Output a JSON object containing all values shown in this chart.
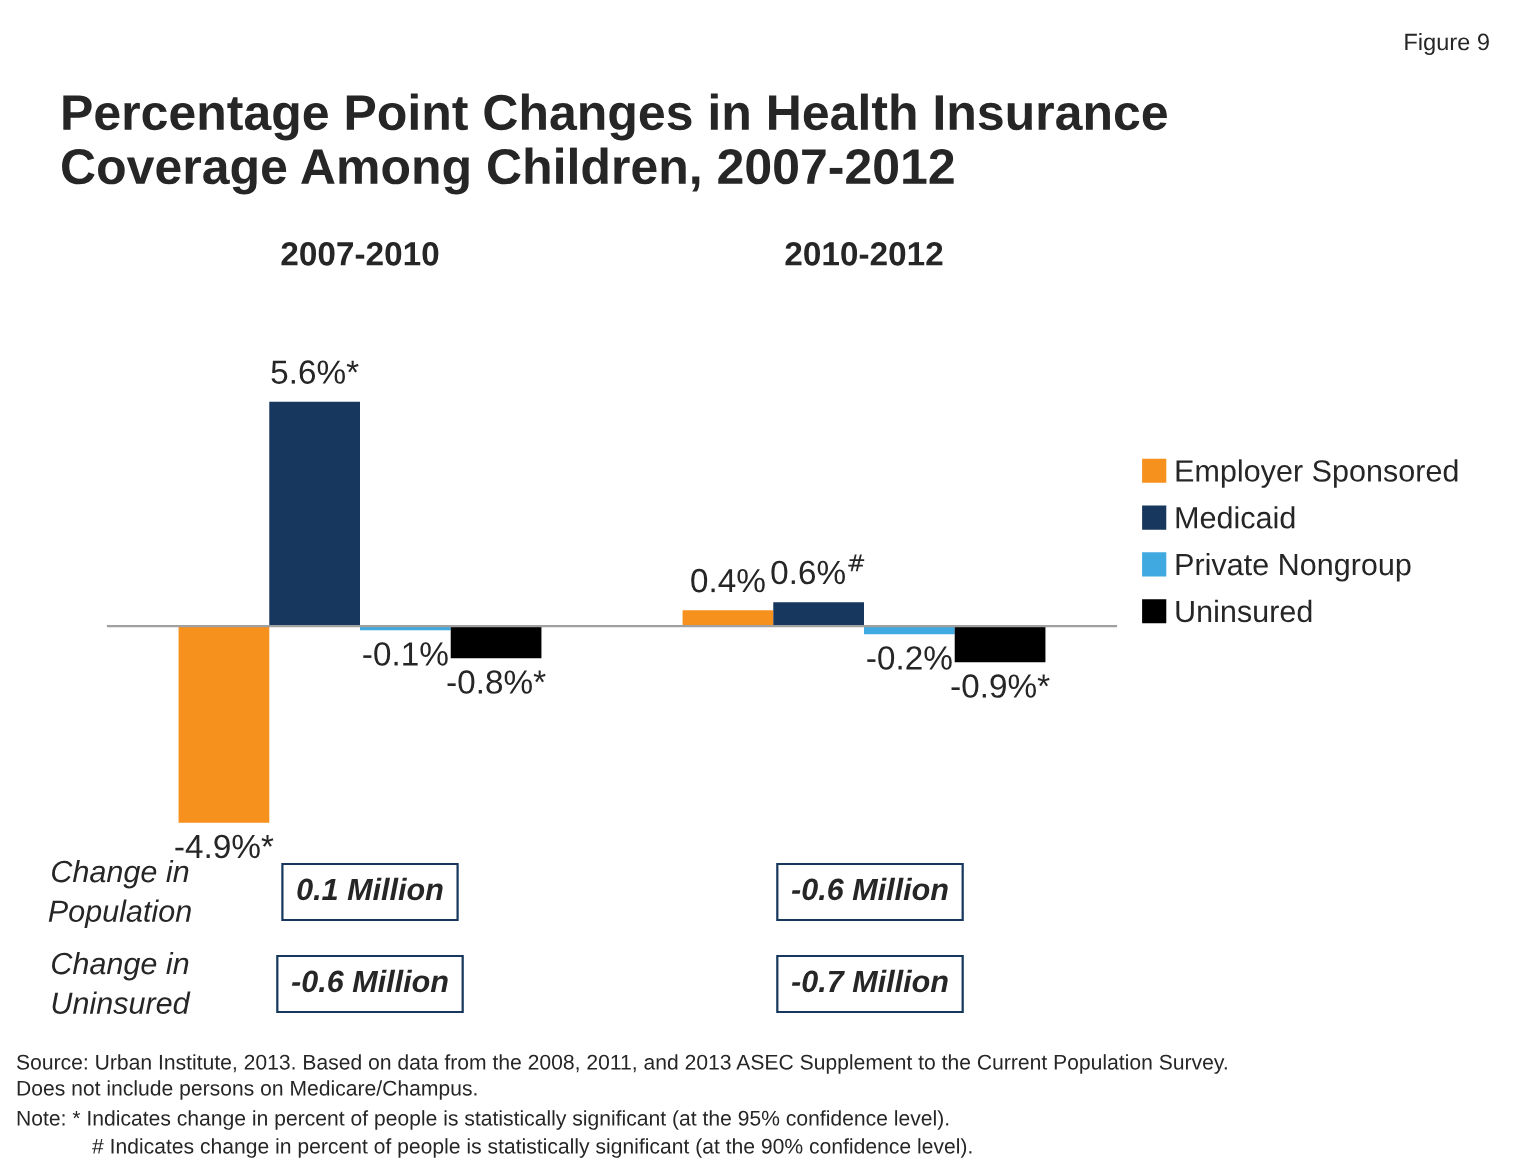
{
  "chart_data": {
    "type": "bar",
    "title": "Percentage Point Changes in Health Insurance Coverage Among Children, 2007-2012",
    "categories": [
      "2007-2010",
      "2010-2012"
    ],
    "series": [
      {
        "name": "Employer Sponsored",
        "color": "#f7911d",
        "values": [
          -4.9,
          0.4
        ],
        "value_labels": [
          "-4.9%*",
          "0.4%"
        ]
      },
      {
        "name": "Medicaid",
        "color": "#17375e",
        "values": [
          5.6,
          0.6
        ],
        "value_labels": [
          "5.6%*",
          "0.6%$^{#}$"
        ]
      },
      {
        "name": "Private Nongroup",
        "color": "#3fa9e0",
        "values": [
          -0.1,
          -0.2
        ],
        "value_labels": [
          "-0.1%",
          "-0.2%"
        ]
      },
      {
        "name": "Uninsured",
        "color": "#000000",
        "values": [
          -0.8,
          -0.9
        ],
        "value_labels": [
          "-0.8%*",
          "-0.9%*"
        ]
      }
    ],
    "legend": "right",
    "grid": false,
    "annotations": [
      "Figure 9",
      "Change in Population",
      "0.1 Million",
      "-0.6 Million",
      "Change in Uninsured",
      "-0.6 Million",
      "-0.7 Million",
      "Source: Urban Institute, 2013. Based on data from the 2008, 2011, and 2013 ASEC Supplement to the Current Population Survey.",
      "Does not include persons on Medicare/Champus.",
      "Note: * Indicates change in percent of people is statistically significant (at the 95% confidence level).",
      "# Indicates change in percent of people is statistically significant (at the 90% confidence level)."
    ]
  }
}
